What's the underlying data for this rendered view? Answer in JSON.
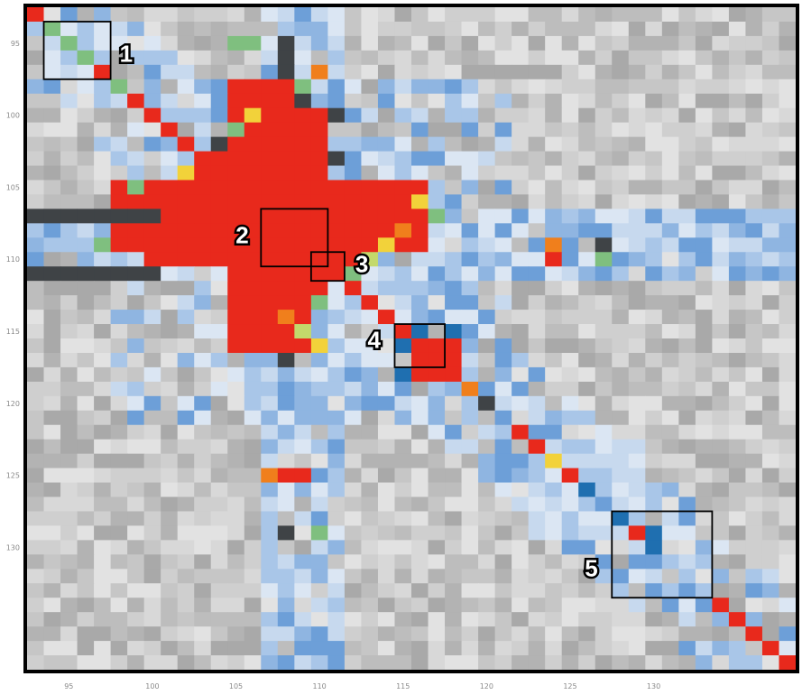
{
  "chart_data": {
    "type": "heatmap",
    "title": "",
    "xlabel": "",
    "ylabel": "",
    "xlim": [
      93,
      139
    ],
    "ylim": [
      93,
      139
    ],
    "x_ticks": [
      "95",
      "100",
      "105",
      "110",
      "115",
      "120",
      "125",
      "130"
    ],
    "y_ticks": [
      "95",
      "100",
      "105",
      "110",
      "115",
      "120",
      "125",
      "130"
    ],
    "palette": {
      "gray": "#bdbdbd",
      "very_light_blue": "#dbe6f3",
      "light_blue": "#a9c6e8",
      "blue": "#6d9fd8",
      "dark_blue": "#1f6fb0",
      "dark_gray": "#3f4346",
      "green": "#7fbf7f",
      "yellow_green": "#c3d96b",
      "yellow": "#f2d23a",
      "orange": "#f07f1c",
      "red": "#e8291c"
    },
    "boxes": [
      {
        "label": "1",
        "start": 94,
        "end": 98
      },
      {
        "label": "2",
        "start": 107,
        "end": 111
      },
      {
        "label": "3",
        "start": 110,
        "end": 112
      },
      {
        "label": "4",
        "start": 115,
        "end": 118
      },
      {
        "label": "5",
        "start": 128,
        "end": 134
      }
    ]
  }
}
